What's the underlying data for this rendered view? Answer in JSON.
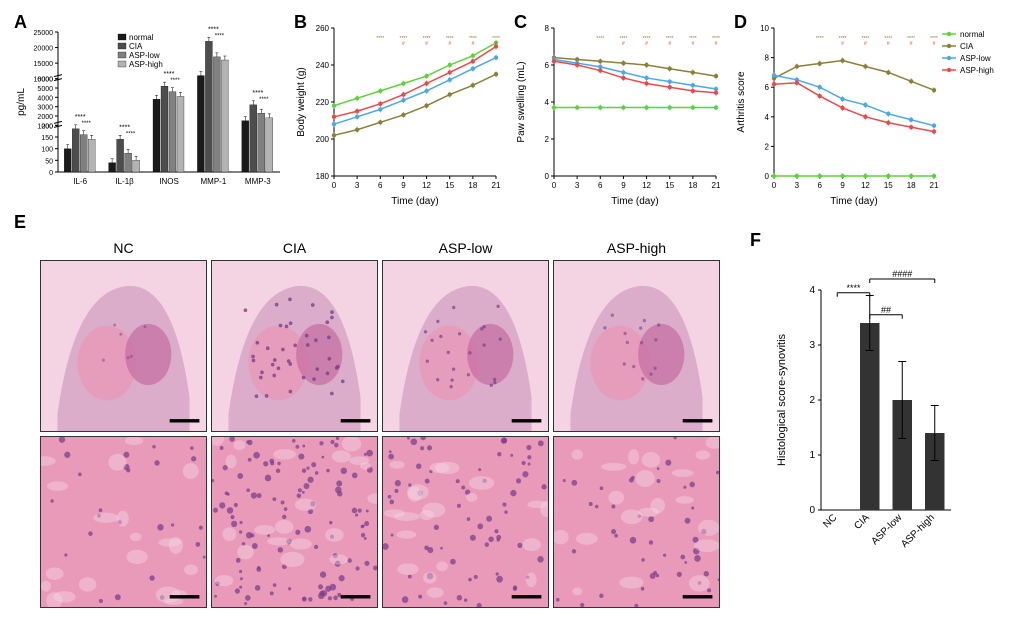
{
  "colors": {
    "normal": "#5FD23B",
    "cia": "#8C7F3B",
    "asp_low": "#4BA8E8",
    "asp_high": "#E84B4B",
    "bar_normal": "#1a1a1a",
    "bar_cia": "#4d4d4d",
    "bar_asp_low": "#808080",
    "bar_asp_high": "#b3b3b3",
    "axis": "#000000",
    "bg": "#ffffff"
  },
  "panelA": {
    "label": "A",
    "type": "bar",
    "ylabel": "pg/mL",
    "ybreaks": [
      [
        0,
        200,
        50
      ],
      [
        1000,
        6000,
        1000
      ],
      [
        10000,
        25000,
        5000
      ]
    ],
    "categories": [
      "IL-6",
      "IL-1β",
      "INOS",
      "MMP-1",
      "MMP-3"
    ],
    "groups": [
      "normal",
      "CIA",
      "ASP-low",
      "ASP-high"
    ],
    "data": {
      "IL-6": {
        "normal": 100,
        "CIA": 185,
        "ASP-low": 160,
        "ASP-high": 140
      },
      "IL-1β": {
        "normal": 40,
        "CIA": 140,
        "ASP-low": 80,
        "ASP-high": 50
      },
      "INOS": {
        "normal": 3800,
        "CIA": 5200,
        "ASP-low": 4600,
        "ASP-high": 4100
      },
      "MMP-1": {
        "normal": 11000,
        "CIA": 22000,
        "ASP-low": 17000,
        "ASP-high": 16000
      },
      "MMP-3": {
        "normal": 1500,
        "CIA": 3200,
        "ASP-low": 2300,
        "ASP-high": 1800
      }
    },
    "sig": [
      {
        "cat": "IL-6",
        "text": "****"
      },
      {
        "cat": "IL-1β",
        "text": "****"
      },
      {
        "cat": "INOS",
        "text": "****"
      },
      {
        "cat": "MMP-1",
        "text": "****"
      },
      {
        "cat": "MMP-3",
        "text": "****"
      }
    ]
  },
  "panelB": {
    "label": "B",
    "type": "line",
    "xlabel": "Time (day)",
    "ylabel": "Body weight (g)",
    "xlim": [
      0,
      21
    ],
    "xtick_step": 3,
    "ylim": [
      180,
      260
    ],
    "ytick_step": 20,
    "series": {
      "normal": [
        218,
        222,
        226,
        230,
        234,
        240,
        245,
        252
      ],
      "CIA": [
        202,
        205,
        209,
        213,
        218,
        224,
        229,
        235
      ],
      "ASP-low": [
        208,
        212,
        216,
        221,
        226,
        232,
        238,
        244
      ],
      "ASP-high": [
        212,
        215,
        219,
        224,
        230,
        236,
        242,
        250
      ]
    }
  },
  "panelC": {
    "label": "C",
    "type": "line",
    "xlabel": "Time (day)",
    "ylabel": "Paw swelling (mL)",
    "xlim": [
      0,
      21
    ],
    "xtick_step": 3,
    "ylim": [
      0,
      8
    ],
    "ytick_step": 2,
    "series": {
      "normal": [
        3.7,
        3.7,
        3.7,
        3.7,
        3.7,
        3.7,
        3.7,
        3.7
      ],
      "CIA": [
        6.4,
        6.3,
        6.2,
        6.1,
        6.0,
        5.8,
        5.6,
        5.4
      ],
      "ASP-low": [
        6.3,
        6.1,
        5.9,
        5.6,
        5.3,
        5.1,
        4.9,
        4.7
      ],
      "ASP-high": [
        6.2,
        6.0,
        5.7,
        5.3,
        5.0,
        4.8,
        4.6,
        4.5
      ]
    }
  },
  "panelD": {
    "label": "D",
    "type": "line",
    "xlabel": "Time (day)",
    "ylabel": "Arthritis score",
    "xlim": [
      0,
      21
    ],
    "xtick_step": 3,
    "ylim": [
      0,
      10
    ],
    "ytick_step": 2,
    "series": {
      "normal": [
        0,
        0,
        0,
        0,
        0,
        0,
        0,
        0
      ],
      "CIA": [
        6.6,
        7.4,
        7.6,
        7.8,
        7.4,
        7.0,
        6.4,
        5.8
      ],
      "ASP-low": [
        6.8,
        6.5,
        6.0,
        5.2,
        4.8,
        4.2,
        3.8,
        3.4
      ],
      "ASP-high": [
        6.2,
        6.3,
        5.4,
        4.6,
        4.0,
        3.6,
        3.3,
        3.0
      ]
    },
    "legend": [
      "normal",
      "CIA",
      "ASP-low",
      "ASP-high"
    ]
  },
  "panelE": {
    "label": "E",
    "columns": [
      "NC",
      "CIA",
      "ASP-low",
      "ASP-high"
    ],
    "rows": 2,
    "tissue_colors": {
      "he_pink": "#E89AB8",
      "he_purple": "#7B3F8C",
      "he_light": "#F4D4E2",
      "bone": "#D8A8C8",
      "marrow": "#C46BA0"
    }
  },
  "panelF": {
    "label": "F",
    "type": "bar",
    "ylabel": "Histological score-synovitis",
    "ylim": [
      0,
      4
    ],
    "ytick_step": 1,
    "categories": [
      "NC",
      "CIA",
      "ASP-low",
      "ASP-high"
    ],
    "values": {
      "NC": 0,
      "CIA": 3.4,
      "ASP-low": 2.0,
      "ASP-high": 1.4
    },
    "errors": {
      "NC": 0,
      "CIA": 0.5,
      "ASP-low": 0.7,
      "ASP-high": 0.5
    },
    "sig": [
      {
        "from": "NC",
        "to": "CIA",
        "text": "****",
        "y": 3.95
      },
      {
        "from": "CIA",
        "to": "ASP-low",
        "text": "##",
        "y": 3.55
      },
      {
        "from": "CIA",
        "to": "ASP-high",
        "text": "####",
        "y": 4.2
      }
    ],
    "bar_color": "#333333"
  }
}
